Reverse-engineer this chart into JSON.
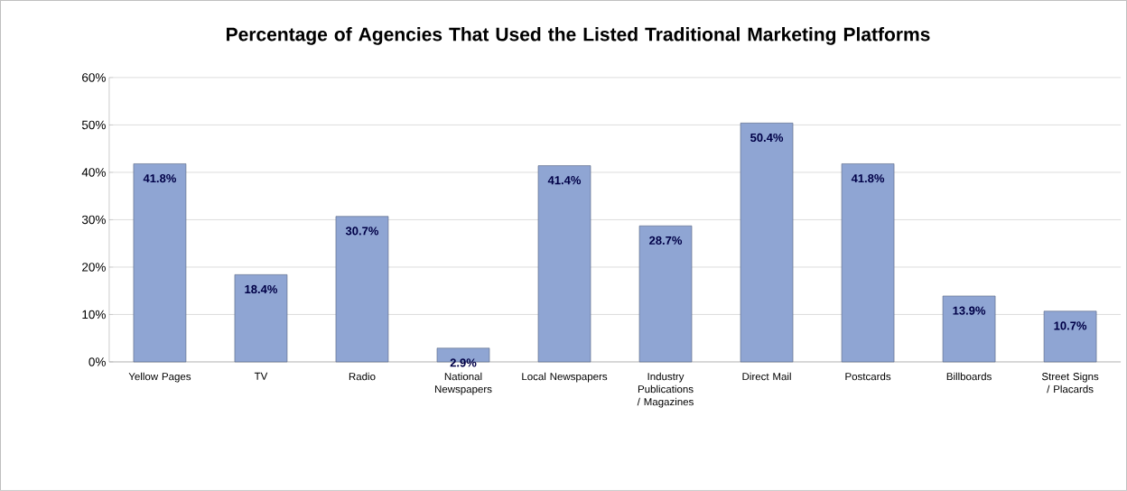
{
  "chart_data": {
    "type": "bar",
    "title": "Percentage of Agencies That Used the Listed Traditional Marketing Platforms",
    "categories": [
      "Yellow Pages",
      "TV",
      "Radio",
      "National Newspapers",
      "Local Newspapers",
      "Industry Publications / Magazines",
      "Direct Mail",
      "Postcards",
      "Billboards",
      "Street Signs / Placards"
    ],
    "values": [
      41.8,
      18.4,
      30.7,
      2.9,
      41.4,
      28.7,
      50.4,
      41.8,
      13.9,
      10.7
    ],
    "value_labels": [
      "41.8%",
      "18.4%",
      "30.7%",
      "2.9%",
      "41.4%",
      "28.7%",
      "50.4%",
      "41.8%",
      "13.9%",
      "10.7%"
    ],
    "color": "#8fa5d3",
    "ylim": [
      0,
      60
    ],
    "yticks": [
      {
        "value": 0,
        "label": "0%"
      },
      {
        "value": 10,
        "label": "10%"
      },
      {
        "value": 20,
        "label": "20%"
      },
      {
        "value": 30,
        "label": "30%"
      },
      {
        "value": 40,
        "label": "40%"
      },
      {
        "value": 50,
        "label": "50%"
      },
      {
        "value": 60,
        "label": "60%"
      }
    ],
    "grid": "y"
  }
}
